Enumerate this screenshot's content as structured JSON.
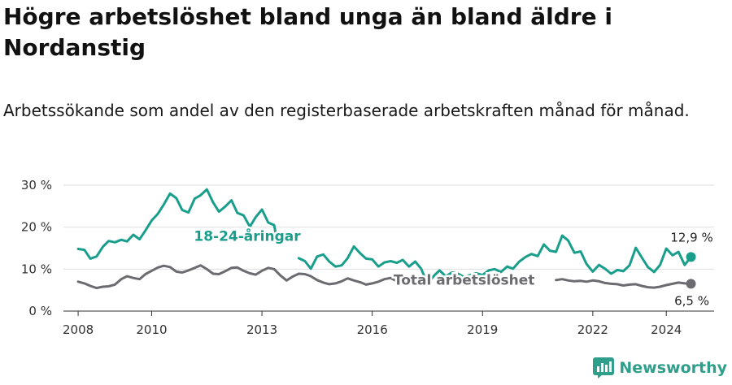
{
  "header": {
    "title": "Högre arbetslöshet bland unga än bland äldre i Nordanstig",
    "subtitle": "Arbetssökande som andel av den registerbaserade arbetskraften månad för månad."
  },
  "brand": {
    "name": "Newsworthy",
    "color": "#2f9e8a"
  },
  "chart_data": {
    "type": "line",
    "title": "Högre arbetslöshet bland unga än bland äldre i Nordanstig",
    "subtitle": "Arbetssökande som andel av den registerbaserade arbetskraften månad för månad.",
    "xlabel": "",
    "ylabel": "",
    "grid": true,
    "legend": "inline labels",
    "xlim": [
      2007.6,
      2025.3
    ],
    "ylim": [
      0,
      30
    ],
    "x_ticks": [
      2008,
      2010,
      2013,
      2016,
      2019,
      2022,
      2024
    ],
    "x_tick_labels": [
      "2008",
      "2010",
      "2013",
      "2016",
      "2019",
      "2022",
      "2024"
    ],
    "y_ticks": [
      0,
      10,
      20,
      30
    ],
    "y_tick_labels": [
      "0 %",
      "10 %",
      "20 %",
      "30 %"
    ],
    "series": [
      {
        "name": "18-24-åringar",
        "color": "#1a9e8c",
        "end_label": "12,9 %",
        "points": [
          [
            2008.0,
            14.8
          ],
          [
            2008.17,
            14.6
          ],
          [
            2008.33,
            12.5
          ],
          [
            2008.5,
            13.0
          ],
          [
            2008.67,
            15.3
          ],
          [
            2008.83,
            16.7
          ],
          [
            2009.0,
            16.4
          ],
          [
            2009.17,
            17.0
          ],
          [
            2009.33,
            16.6
          ],
          [
            2009.5,
            18.2
          ],
          [
            2009.67,
            17.1
          ],
          [
            2009.83,
            19.2
          ],
          [
            2010.0,
            21.6
          ],
          [
            2010.17,
            23.2
          ],
          [
            2010.33,
            25.4
          ],
          [
            2010.5,
            28.0
          ],
          [
            2010.67,
            26.9
          ],
          [
            2010.83,
            24.1
          ],
          [
            2011.0,
            23.5
          ],
          [
            2011.17,
            26.8
          ],
          [
            2011.33,
            27.6
          ],
          [
            2011.5,
            29.0
          ],
          [
            2011.67,
            25.9
          ],
          [
            2011.83,
            23.7
          ],
          [
            2012.0,
            24.9
          ],
          [
            2012.17,
            26.4
          ],
          [
            2012.33,
            23.4
          ],
          [
            2012.5,
            22.8
          ],
          [
            2012.67,
            20.1
          ],
          [
            2012.83,
            22.4
          ],
          [
            2013.0,
            24.2
          ],
          [
            2013.17,
            21.1
          ],
          [
            2013.33,
            20.5
          ],
          [
            2013.42,
            16.5
          ],
          [
            2014.0,
            12.6
          ],
          [
            2014.17,
            11.9
          ],
          [
            2014.33,
            10.1
          ],
          [
            2014.5,
            13.0
          ],
          [
            2014.67,
            13.5
          ],
          [
            2014.83,
            11.8
          ],
          [
            2015.0,
            10.6
          ],
          [
            2015.17,
            10.9
          ],
          [
            2015.33,
            12.6
          ],
          [
            2015.5,
            15.4
          ],
          [
            2015.67,
            13.8
          ],
          [
            2015.83,
            12.5
          ],
          [
            2016.0,
            12.3
          ],
          [
            2016.17,
            10.6
          ],
          [
            2016.33,
            11.6
          ],
          [
            2016.5,
            11.9
          ],
          [
            2016.67,
            11.5
          ],
          [
            2016.83,
            12.2
          ],
          [
            2017.0,
            10.6
          ],
          [
            2017.17,
            11.8
          ],
          [
            2017.33,
            10.1
          ],
          [
            2017.5,
            6.6
          ],
          [
            2017.7,
            8.6
          ],
          [
            2017.83,
            9.7
          ],
          [
            2018.0,
            8.3
          ],
          [
            2018.17,
            9.2
          ],
          [
            2018.33,
            8.9
          ],
          [
            2018.5,
            8.1
          ],
          [
            2018.67,
            8.6
          ],
          [
            2018.83,
            9.0
          ],
          [
            2019.0,
            8.6
          ],
          [
            2019.17,
            9.7
          ],
          [
            2019.33,
            10.0
          ],
          [
            2019.5,
            9.3
          ],
          [
            2019.67,
            10.6
          ],
          [
            2019.83,
            10.1
          ],
          [
            2020.0,
            11.8
          ],
          [
            2020.17,
            12.9
          ],
          [
            2020.33,
            13.6
          ],
          [
            2020.5,
            13.1
          ],
          [
            2020.67,
            15.9
          ],
          [
            2020.83,
            14.4
          ],
          [
            2021.0,
            14.1
          ],
          [
            2021.17,
            18.0
          ],
          [
            2021.33,
            16.8
          ],
          [
            2021.5,
            13.9
          ],
          [
            2021.67,
            14.2
          ],
          [
            2021.83,
            11.2
          ],
          [
            2022.0,
            9.4
          ],
          [
            2022.17,
            11.0
          ],
          [
            2022.33,
            10.1
          ],
          [
            2022.5,
            8.9
          ],
          [
            2022.67,
            9.8
          ],
          [
            2022.83,
            9.5
          ],
          [
            2023.0,
            10.9
          ],
          [
            2023.17,
            15.1
          ],
          [
            2023.33,
            12.8
          ],
          [
            2023.5,
            10.5
          ],
          [
            2023.67,
            9.3
          ],
          [
            2023.83,
            11.0
          ],
          [
            2024.0,
            14.9
          ],
          [
            2024.17,
            13.3
          ],
          [
            2024.33,
            14.1
          ],
          [
            2024.5,
            11.0
          ],
          [
            2024.67,
            12.9
          ]
        ]
      },
      {
        "name": "Total arbetslöshet",
        "color": "#6b6b70",
        "end_label": "6,5 %",
        "points": [
          [
            2008.0,
            7.0
          ],
          [
            2008.17,
            6.6
          ],
          [
            2008.33,
            6.0
          ],
          [
            2008.5,
            5.5
          ],
          [
            2008.67,
            5.8
          ],
          [
            2008.83,
            5.9
          ],
          [
            2009.0,
            6.3
          ],
          [
            2009.17,
            7.6
          ],
          [
            2009.33,
            8.3
          ],
          [
            2009.5,
            7.9
          ],
          [
            2009.67,
            7.6
          ],
          [
            2009.83,
            8.8
          ],
          [
            2010.0,
            9.6
          ],
          [
            2010.17,
            10.4
          ],
          [
            2010.33,
            10.8
          ],
          [
            2010.5,
            10.5
          ],
          [
            2010.67,
            9.4
          ],
          [
            2010.83,
            9.2
          ],
          [
            2011.0,
            9.7
          ],
          [
            2011.17,
            10.3
          ],
          [
            2011.33,
            10.9
          ],
          [
            2011.5,
            10.0
          ],
          [
            2011.67,
            8.9
          ],
          [
            2011.83,
            8.8
          ],
          [
            2012.0,
            9.5
          ],
          [
            2012.17,
            10.3
          ],
          [
            2012.33,
            10.4
          ],
          [
            2012.5,
            9.6
          ],
          [
            2012.67,
            9.0
          ],
          [
            2012.83,
            8.7
          ],
          [
            2013.0,
            9.6
          ],
          [
            2013.17,
            10.3
          ],
          [
            2013.33,
            10.0
          ],
          [
            2013.5,
            8.5
          ],
          [
            2013.67,
            7.3
          ],
          [
            2013.83,
            8.2
          ],
          [
            2014.0,
            8.9
          ],
          [
            2014.17,
            8.8
          ],
          [
            2014.33,
            8.3
          ],
          [
            2014.5,
            7.4
          ],
          [
            2014.67,
            6.8
          ],
          [
            2014.83,
            6.4
          ],
          [
            2015.0,
            6.6
          ],
          [
            2015.17,
            7.1
          ],
          [
            2015.33,
            7.8
          ],
          [
            2015.5,
            7.3
          ],
          [
            2015.67,
            6.9
          ],
          [
            2015.83,
            6.3
          ],
          [
            2016.0,
            6.6
          ],
          [
            2016.17,
            7.0
          ],
          [
            2016.33,
            7.6
          ],
          [
            2016.5,
            7.9
          ],
          [
            2016.67,
            7.1
          ],
          [
            2016.83,
            6.6
          ],
          [
            2017.0,
            6.5
          ],
          [
            2017.17,
            6.9
          ],
          [
            2017.33,
            6.7
          ],
          [
            2017.5,
            6.6
          ],
          [
            2021.0,
            7.4
          ],
          [
            2021.17,
            7.6
          ],
          [
            2021.33,
            7.3
          ],
          [
            2021.5,
            7.1
          ],
          [
            2021.67,
            7.2
          ],
          [
            2021.83,
            7.0
          ],
          [
            2022.0,
            7.3
          ],
          [
            2022.17,
            7.1
          ],
          [
            2022.33,
            6.7
          ],
          [
            2022.5,
            6.5
          ],
          [
            2022.67,
            6.4
          ],
          [
            2022.83,
            6.1
          ],
          [
            2023.0,
            6.3
          ],
          [
            2023.17,
            6.4
          ],
          [
            2023.33,
            6.0
          ],
          [
            2023.5,
            5.7
          ],
          [
            2023.67,
            5.6
          ],
          [
            2023.83,
            5.8
          ],
          [
            2024.0,
            6.2
          ],
          [
            2024.17,
            6.5
          ],
          [
            2024.33,
            6.8
          ],
          [
            2024.5,
            6.6
          ],
          [
            2024.67,
            6.5
          ]
        ]
      }
    ],
    "annotations": [
      {
        "text": "18-24-åringar",
        "x": 2012.6,
        "y": 16.7,
        "series": "18-24-åringar"
      },
      {
        "text": "Total arbetslöshet",
        "x": 2018.5,
        "y": 6.3,
        "series": "Total arbetslöshet"
      }
    ]
  }
}
